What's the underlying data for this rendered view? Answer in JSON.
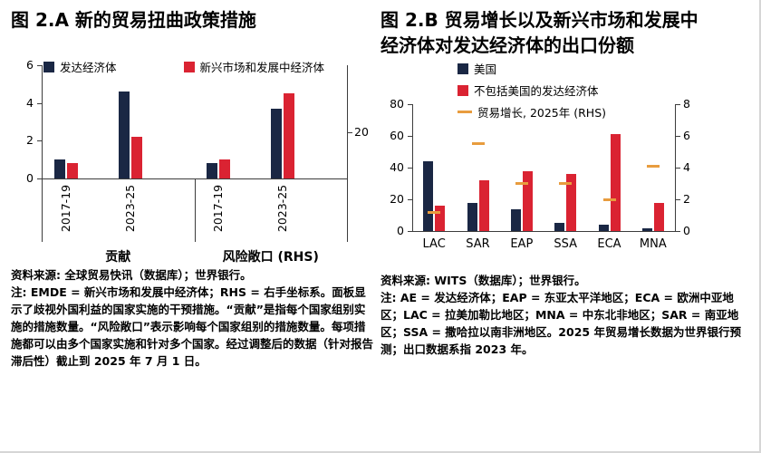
{
  "colors": {
    "navy": "#1a2744",
    "red": "#da2332",
    "orange": "#e89c3e",
    "axis": "#3c3c3c"
  },
  "panel_a": {
    "title": "图 2.A 新的贸易扭曲政策措施",
    "legend": [
      {
        "label": "发达经济体",
        "swatch": "navy"
      },
      {
        "label": "新兴市场和发展中经济体",
        "swatch": "red"
      }
    ],
    "source": "资料来源: 全球贸易快讯（数据库）；世界银行。",
    "note": "注: EMDE = 新兴市场和发展中经济体；RHS = 右手坐标系。面板显示了歧视外国利益的国家实施的干预措施。“贡献”是指每个国家组别实施的措施数量。“风险敞口”表示影响每个国家组别的措施数量。每项措施都可以由多个国家实施和针对多个国家。经过调整后的数据（针对报告滞后性）截止到 2025 年 7 月 1 日。"
  },
  "panel_b": {
    "title": "图 2.B 贸易增长以及新兴市场和发展中经济体对发达经济体的出口份额",
    "legend": [
      {
        "label": "美国",
        "swatch": "navy",
        "marker": "square"
      },
      {
        "label": "不包括美国的发达经济体",
        "swatch": "red",
        "marker": "square"
      },
      {
        "label": "贸易增长, 2025年 (RHS)",
        "swatch": "orange",
        "marker": "dash"
      }
    ],
    "source": "资料来源: WITS（数据库）；世界银行。",
    "note": "注: AE = 发达经济体；EAP = 东亚太平洋地区；ECA = 欧洲中亚地区；LAC = 拉美加勒比地区；MNA = 中东北非地区；SAR = 南亚地区；SSA = 撒哈拉以南非洲地区。2025 年贸易增长数据为世界银行预测；出口数据系指 2023 年。"
  },
  "chart_data": [
    {
      "id": "chartA",
      "type": "bar",
      "title": "图 2.A 新的贸易扭曲政策措施",
      "groups": [
        "贡献",
        "风险敞口 (RHS)"
      ],
      "categories": [
        "2017-19",
        "2023-25",
        "2017-19",
        "2023-25"
      ],
      "series": [
        {
          "name": "发达经济体",
          "color": "navy",
          "values": [
            1.0,
            4.6,
            0.8,
            3.7
          ]
        },
        {
          "name": "新兴市场和发展中经济体",
          "color": "red",
          "values": [
            0.8,
            2.2,
            1.0,
            4.5
          ]
        }
      ],
      "ylim_left": [
        0,
        6
      ],
      "yticks_left": [
        0,
        2,
        4,
        6
      ],
      "right_axis_tick": {
        "label": "20",
        "at_left_axis_value": 2.45
      },
      "rhs_group": {
        "name": "风险敞口 (RHS)",
        "approx_rhs_values": {
          "发达经济体": 30,
          "新兴市场和发展中经济体": 37
        }
      },
      "grid": false,
      "legend_position": "top"
    },
    {
      "id": "chartB",
      "type": "bar",
      "title": "图 2.B 贸易增长以及新兴市场和发展中经济体对发达经济体的出口份额",
      "categories": [
        "LAC",
        "SAR",
        "EAP",
        "SSA",
        "ECA",
        "MNA"
      ],
      "series": [
        {
          "name": "美国",
          "color": "navy",
          "values": [
            44,
            18,
            14,
            5,
            4,
            2
          ]
        },
        {
          "name": "不包括美国的发达经济体",
          "color": "red",
          "values": [
            16,
            32,
            38,
            36,
            61,
            18
          ]
        }
      ],
      "markers": {
        "name": "贸易增长, 2025年 (RHS)",
        "color": "orange",
        "axis": "right",
        "values": [
          1.2,
          5.5,
          3.0,
          3.0,
          2.0,
          4.1
        ]
      },
      "ylim_left": [
        0,
        80
      ],
      "yticks_left": [
        0,
        20,
        40,
        60,
        80
      ],
      "ylim_right": [
        0,
        8
      ],
      "yticks_right": [
        0,
        2,
        4,
        6,
        8
      ],
      "grid": false,
      "legend_position": "top"
    }
  ]
}
